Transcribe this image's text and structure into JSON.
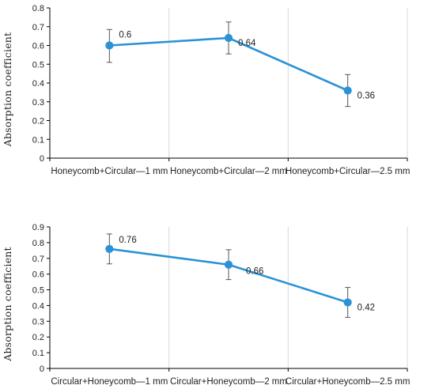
{
  "chart_data": [
    {
      "type": "line",
      "ylabel": "Absorption coefficient",
      "ylim": [
        0,
        0.8
      ],
      "yticks": [
        "0",
        "0.1",
        "0.2",
        "0.3",
        "0.4",
        "0.5",
        "0.6",
        "0.7",
        "0.8"
      ],
      "categories": [
        "Honeycomb+Circular—1 mm",
        "Honeycomb+Circular—2 mm",
        "Honeycomb+Circular—2.5 mm"
      ],
      "series": [
        {
          "values": [
            0.6,
            0.64,
            0.36
          ],
          "data_labels": [
            "0.6",
            "0.64",
            "0.36"
          ],
          "error_low": [
            0.51,
            0.555,
            0.275
          ],
          "error_high": [
            0.685,
            0.725,
            0.445
          ]
        }
      ],
      "grid": "vertical",
      "color": "#2a93d5"
    },
    {
      "type": "line",
      "ylabel": "Absorption coefficient",
      "ylim": [
        0,
        0.9
      ],
      "yticks": [
        "0",
        "0.1",
        "0.2",
        "0.3",
        "0.4",
        "0.5",
        "0.6",
        "0.7",
        "0.8",
        "0.9"
      ],
      "categories": [
        "Circular+Honeycomb—1 mm",
        "Circular+Honeycomb—2 mm",
        "Circular+Honeycomb—2.5 mm"
      ],
      "series": [
        {
          "values": [
            0.76,
            0.66,
            0.42
          ],
          "data_labels": [
            "0.76",
            "0.66",
            "0.42"
          ],
          "error_low": [
            0.665,
            0.565,
            0.325
          ],
          "error_high": [
            0.855,
            0.755,
            0.515
          ]
        }
      ],
      "grid": "vertical",
      "color": "#2a93d5"
    }
  ]
}
